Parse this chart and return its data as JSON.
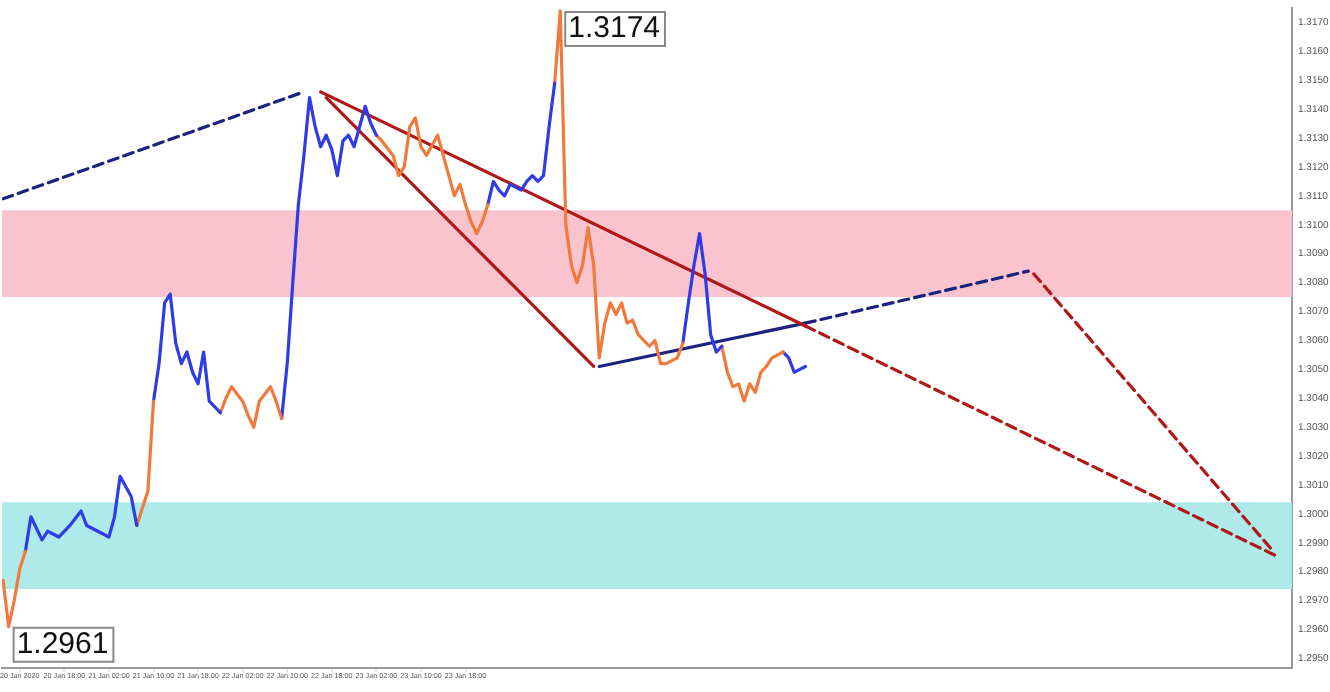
{
  "chart_data": {
    "type": "line",
    "xlim": [
      "2020-01-20T06:50",
      "2020-01-29T22:20"
    ],
    "ylim": [
      1.29467,
      1.3175
    ],
    "marker": "none",
    "xticks": [
      {
        "value": "2020-01-20T10:00",
        "label": "20 Jan 2020"
      },
      {
        "value": "2020-01-20T18:00",
        "label": "20 Jan 18:00"
      },
      {
        "value": "2020-01-21T02:00",
        "label": "21 Jan 02:00"
      },
      {
        "value": "2020-01-21T10:00",
        "label": "21 Jan 10:00"
      },
      {
        "value": "2020-01-21T18:00",
        "label": "21 Jan 18:00"
      },
      {
        "value": "2020-01-22T02:00",
        "label": "22 Jan 02:00"
      },
      {
        "value": "2020-01-22T10:00",
        "label": "22 Jan 10:00"
      },
      {
        "value": "2020-01-22T18:00",
        "label": "22 Jan 18:00"
      },
      {
        "value": "2020-01-23T02:00",
        "label": "23 Jan 02:00"
      },
      {
        "value": "2020-01-23T10:00",
        "label": "23 Jan 10:00"
      },
      {
        "value": "2020-01-23T18:00",
        "label": "23 Jan 18:00"
      }
    ],
    "yticks": [
      {
        "value": 1.295,
        "label": "1.2950"
      },
      {
        "value": 1.296,
        "label": "1.2960"
      },
      {
        "value": 1.297,
        "label": "1.2970"
      },
      {
        "value": 1.298,
        "label": "1.2980"
      },
      {
        "value": 1.299,
        "label": "1.2990"
      },
      {
        "value": 1.3,
        "label": "1.3000"
      },
      {
        "value": 1.301,
        "label": "1.3010"
      },
      {
        "value": 1.302,
        "label": "1.3020"
      },
      {
        "value": 1.303,
        "label": "1.3030"
      },
      {
        "value": 1.304,
        "label": "1.3040"
      },
      {
        "value": 1.305,
        "label": "1.3050"
      },
      {
        "value": 1.306,
        "label": "1.3060"
      },
      {
        "value": 1.307,
        "label": "1.3070"
      },
      {
        "value": 1.308,
        "label": "1.3080"
      },
      {
        "value": 1.309,
        "label": "1.3090"
      },
      {
        "value": 1.31,
        "label": "1.3100"
      },
      {
        "value": 1.311,
        "label": "1.3110"
      },
      {
        "value": 1.312,
        "label": "1.3120"
      },
      {
        "value": 1.313,
        "label": "1.3130"
      },
      {
        "value": 1.314,
        "label": "1.3140"
      },
      {
        "value": 1.315,
        "label": "1.3150"
      },
      {
        "value": 1.316,
        "label": "1.3160"
      },
      {
        "value": 1.317,
        "label": "1.3170"
      }
    ],
    "bands": [
      {
        "axis": "y",
        "from": 1.3075,
        "to": 1.3105,
        "color": "#fbc3ce"
      },
      {
        "axis": "y",
        "from": 1.2974,
        "to": 1.3004,
        "color": "#aeeaea"
      }
    ],
    "annotations": [
      {
        "text": "1.3174",
        "x": "2020-01-24T11:00",
        "y": 1.3174
      },
      {
        "text": "1.2961",
        "x": "2020-01-20T08:00",
        "y": 1.2961
      }
    ],
    "series": [
      {
        "color": "#f07a3c",
        "x": [
          "2020-01-20T07:00",
          "2020-01-20T08:00",
          "2020-01-20T09:00",
          "2020-01-20T10:00",
          "2020-01-20T11:00"
        ],
        "values": [
          1.2977,
          1.2961,
          1.297,
          1.2981,
          1.2987
        ]
      },
      {
        "color": "#2f3be6",
        "x": [
          "2020-01-20T11:00",
          "2020-01-20T12:00",
          "2020-01-20T14:00",
          "2020-01-20T15:00",
          "2020-01-20T17:00",
          "2020-01-20T19:00",
          "2020-01-20T21:00",
          "2020-01-20T22:00",
          "2020-01-21T00:00",
          "2020-01-21T02:00",
          "2020-01-21T03:00",
          "2020-01-21T04:00",
          "2020-01-21T06:00",
          "2020-01-21T07:00"
        ],
        "values": [
          1.2987,
          1.2999,
          1.2991,
          1.2994,
          1.2992,
          1.2996,
          1.3001,
          1.2996,
          1.2994,
          1.2992,
          1.2999,
          1.3013,
          1.3006,
          1.2996
        ]
      },
      {
        "color": "#f07a3c",
        "x": [
          "2020-01-21T07:00",
          "2020-01-21T09:00",
          "2020-01-21T10:00"
        ],
        "values": [
          1.2996,
          1.3008,
          1.3039
        ]
      },
      {
        "color": "#2f3be6",
        "x": [
          "2020-01-21T10:00",
          "2020-01-21T11:00",
          "2020-01-21T12:00",
          "2020-01-21T13:00",
          "2020-01-21T14:00",
          "2020-01-21T15:00",
          "2020-01-21T16:00",
          "2020-01-21T17:00",
          "2020-01-21T18:00",
          "2020-01-21T19:00",
          "2020-01-21T20:00",
          "2020-01-21T22:00"
        ],
        "values": [
          1.3039,
          1.3052,
          1.3073,
          1.3076,
          1.3059,
          1.3052,
          1.3056,
          1.3049,
          1.3045,
          1.3056,
          1.3039,
          1.3035
        ]
      },
      {
        "color": "#f07a3c",
        "x": [
          "2020-01-21T22:00",
          "2020-01-21T23:00",
          "2020-01-22T00:00",
          "2020-01-22T02:00",
          "2020-01-22T03:00",
          "2020-01-22T04:00",
          "2020-01-22T05:00",
          "2020-01-22T07:00",
          "2020-01-22T08:00",
          "2020-01-22T09:00"
        ],
        "values": [
          1.3035,
          1.304,
          1.3044,
          1.3039,
          1.3034,
          1.303,
          1.3039,
          1.3044,
          1.3039,
          1.3033
        ]
      },
      {
        "color": "#2f3be6",
        "x": [
          "2020-01-22T09:00",
          "2020-01-22T10:00",
          "2020-01-22T11:00",
          "2020-01-22T12:00",
          "2020-01-22T13:00",
          "2020-01-22T14:00",
          "2020-01-22T15:00",
          "2020-01-22T16:00",
          "2020-01-22T17:00",
          "2020-01-22T18:00",
          "2020-01-22T19:00",
          "2020-01-22T20:00",
          "2020-01-22T21:00",
          "2020-01-22T22:00",
          "2020-01-22T23:00",
          "2020-01-23T00:00",
          "2020-01-23T01:00",
          "2020-01-23T02:00"
        ],
        "values": [
          1.3033,
          1.3052,
          1.308,
          1.3107,
          1.3124,
          1.3144,
          1.3134,
          1.3127,
          1.3131,
          1.3126,
          1.3117,
          1.3129,
          1.3131,
          1.3127,
          1.3134,
          1.3141,
          1.3135,
          1.3131
        ]
      },
      {
        "color": "#f07a3c",
        "x": [
          "2020-01-23T02:00",
          "2020-01-23T03:00",
          "2020-01-23T05:00",
          "2020-01-23T06:00",
          "2020-01-23T07:00",
          "2020-01-23T08:00",
          "2020-01-23T09:00",
          "2020-01-23T10:00",
          "2020-01-23T11:00",
          "2020-01-23T13:00",
          "2020-01-23T14:00",
          "2020-01-23T15:00",
          "2020-01-23T16:00",
          "2020-01-23T17:00",
          "2020-01-23T18:00",
          "2020-01-23T19:00",
          "2020-01-23T20:00",
          "2020-01-23T21:00",
          "2020-01-23T22:00"
        ],
        "values": [
          1.3131,
          1.3129,
          1.3124,
          1.3117,
          1.312,
          1.3134,
          1.3137,
          1.3127,
          1.3124,
          1.3131,
          1.3124,
          1.3117,
          1.311,
          1.3114,
          1.3107,
          1.3101,
          1.3097,
          1.3101,
          1.3107
        ]
      },
      {
        "color": "#2f3be6",
        "x": [
          "2020-01-23T22:00",
          "2020-01-23T23:00",
          "2020-01-24T00:00",
          "2020-01-24T01:00",
          "2020-01-24T02:00",
          "2020-01-24T04:00",
          "2020-01-24T05:00",
          "2020-01-24T06:00",
          "2020-01-24T07:00",
          "2020-01-24T08:00",
          "2020-01-24T09:00",
          "2020-01-24T10:00"
        ],
        "values": [
          1.3107,
          1.3115,
          1.3112,
          1.311,
          1.3114,
          1.3112,
          1.3115,
          1.3117,
          1.3115,
          1.3117,
          1.3134,
          1.3149
        ]
      },
      {
        "color": "#f07a3c",
        "x": [
          "2020-01-24T10:00",
          "2020-01-24T11:00",
          "2020-01-24T12:00",
          "2020-01-24T13:00",
          "2020-01-24T14:00",
          "2020-01-24T15:00",
          "2020-01-24T16:00",
          "2020-01-24T17:00",
          "2020-01-24T18:00",
          "2020-01-24T19:00",
          "2020-01-24T20:00",
          "2020-01-24T21:00",
          "2020-01-24T22:00",
          "2020-01-24T23:00",
          "2020-01-25T00:00",
          "2020-01-25T01:00",
          "2020-01-25T03:00",
          "2020-01-25T04:00",
          "2020-01-25T05:00",
          "2020-01-25T06:00",
          "2020-01-25T08:00",
          "2020-01-25T09:00"
        ],
        "values": [
          1.3149,
          1.3174,
          1.31,
          1.3086,
          1.308,
          1.3086,
          1.3099,
          1.3086,
          1.3054,
          1.3066,
          1.3073,
          1.3069,
          1.3073,
          1.3066,
          1.3067,
          1.3062,
          1.3058,
          1.306,
          1.3052,
          1.3052,
          1.3054,
          1.3059
        ]
      },
      {
        "color": "#2f3be6",
        "x": [
          "2020-01-25T09:00",
          "2020-01-25T10:00",
          "2020-01-25T11:00",
          "2020-01-25T12:00",
          "2020-01-25T13:00",
          "2020-01-25T14:00",
          "2020-01-25T15:00",
          "2020-01-25T16:00"
        ],
        "values": [
          1.3059,
          1.3073,
          1.3086,
          1.3097,
          1.3083,
          1.3062,
          1.3056,
          1.3058
        ]
      },
      {
        "color": "#f07a3c",
        "x": [
          "2020-01-25T16:00",
          "2020-01-25T17:00",
          "2020-01-25T18:00",
          "2020-01-25T19:00",
          "2020-01-25T20:00",
          "2020-01-25T21:00",
          "2020-01-25T22:00",
          "2020-01-25T23:00",
          "2020-01-26T00:00",
          "2020-01-26T01:00",
          "2020-01-26T03:00"
        ],
        "values": [
          1.3058,
          1.3049,
          1.3044,
          1.3045,
          1.3039,
          1.3045,
          1.3042,
          1.3049,
          1.3051,
          1.3054,
          1.3056
        ]
      },
      {
        "color": "#2f3be6",
        "x": [
          "2020-01-26T03:00",
          "2020-01-26T04:00",
          "2020-01-26T05:00",
          "2020-01-26T06:00",
          "2020-01-26T07:00"
        ],
        "values": [
          1.3056,
          1.3054,
          1.3049,
          1.305,
          1.3051
        ]
      },
      {
        "color": "#1c237e",
        "line_style": "dashed",
        "x": [
          "2020-01-20T07:00",
          "2020-01-22T13:00"
        ],
        "values": [
          1.3109,
          1.3146
        ]
      },
      {
        "color": "#b01818",
        "x": [
          "2020-01-22T16:00",
          "2020-01-26T07:00"
        ],
        "values": [
          1.3146,
          1.3065
        ]
      },
      {
        "color": "#b01818",
        "line_style": "dashed",
        "x": [
          "2020-01-26T07:00",
          "2020-01-29T20:00"
        ],
        "values": [
          1.3065,
          1.2985
        ]
      },
      {
        "color": "#b01818",
        "x": [
          "2020-01-22T17:00",
          "2020-01-24T17:00"
        ],
        "values": [
          1.3144,
          1.3051
        ]
      },
      {
        "color": "#1c237e",
        "x": [
          "2020-01-24T18:00",
          "2020-01-26T07:00"
        ],
        "values": [
          1.3051,
          1.3066
        ]
      },
      {
        "color": "#1c237e",
        "line_style": "dashed",
        "x": [
          "2020-01-26T07:00",
          "2020-01-27T23:00"
        ],
        "values": [
          1.3066,
          1.3084
        ]
      },
      {
        "color": "#b01818",
        "line_style": "dashed",
        "x": [
          "2020-01-28T00:00",
          "2020-01-29T19:00"
        ],
        "values": [
          1.3083,
          1.2987
        ]
      }
    ]
  }
}
